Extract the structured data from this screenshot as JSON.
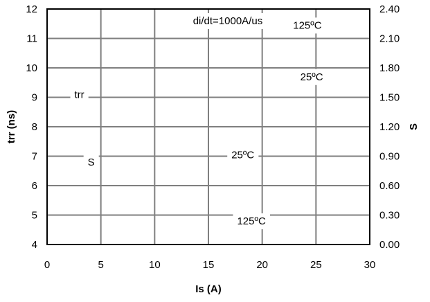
{
  "chart_data": {
    "type": "line",
    "title": "",
    "xlabel": "Is (A)",
    "ylabel": "trr (ns)",
    "y2label": "S",
    "xlim": [
      0,
      30
    ],
    "ylim": [
      4,
      12
    ],
    "y2lim": [
      0.0,
      2.4
    ],
    "x_ticks": [
      "0",
      "5",
      "10",
      "15",
      "20",
      "25",
      "30"
    ],
    "y_ticks": [
      "4",
      "5",
      "6",
      "7",
      "8",
      "9",
      "10",
      "11",
      "12"
    ],
    "y2_ticks": [
      "0.00",
      "0.30",
      "0.60",
      "0.90",
      "1.20",
      "1.50",
      "1.80",
      "2.10",
      "2.40"
    ],
    "grid": true,
    "series": [],
    "annotations": [
      {
        "text": "di/dt=1000A/us",
        "x": 16.8,
        "y": 11.6
      },
      {
        "text": "125ºC",
        "x": 24.2,
        "y": 11.45
      },
      {
        "text": "25ºC",
        "x": 24.6,
        "y": 9.7
      },
      {
        "text": "trr",
        "x": 3.0,
        "y": 9.1
      },
      {
        "text": "S",
        "x": 4.1,
        "y": 6.8
      },
      {
        "text": "25ºC",
        "x": 18.2,
        "y": 7.05
      },
      {
        "text": "125ºC",
        "x": 19.0,
        "y": 4.8
      }
    ]
  }
}
